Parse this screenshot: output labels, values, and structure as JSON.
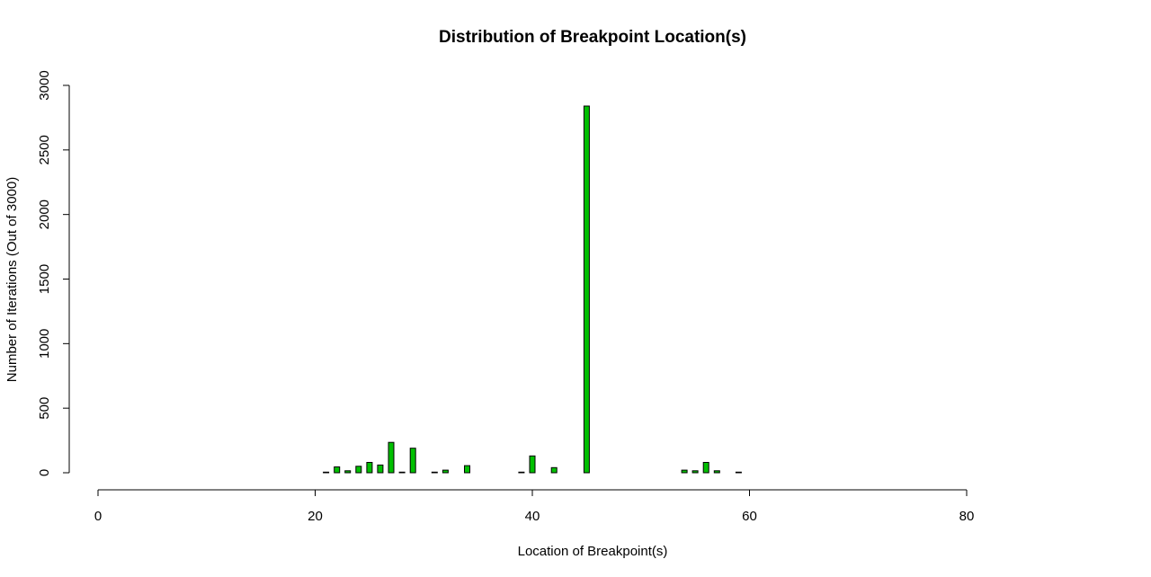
{
  "chart_data": {
    "type": "bar",
    "title": "Distribution of Breakpoint Location(s)",
    "xlabel": "Location of Breakpoint(s)",
    "ylabel": "Number of Iterations (Out of 3000)",
    "xlim": [
      0,
      80
    ],
    "ylim": [
      0,
      3000
    ],
    "xticks": [
      "0",
      "20",
      "40",
      "60",
      "80"
    ],
    "yticks": [
      "0",
      "500",
      "1000",
      "1500",
      "2000",
      "2500",
      "3000"
    ],
    "grid": false,
    "legend": "none",
    "bar_color": "#00c000",
    "x": [
      21,
      22,
      23,
      24,
      25,
      26,
      27,
      28,
      29,
      31,
      32,
      34,
      39,
      40,
      42,
      45,
      54,
      55,
      56,
      57,
      59
    ],
    "values": [
      5,
      45,
      15,
      50,
      80,
      60,
      235,
      5,
      190,
      5,
      20,
      55,
      5,
      130,
      40,
      2840,
      20,
      15,
      80,
      15,
      5
    ]
  }
}
